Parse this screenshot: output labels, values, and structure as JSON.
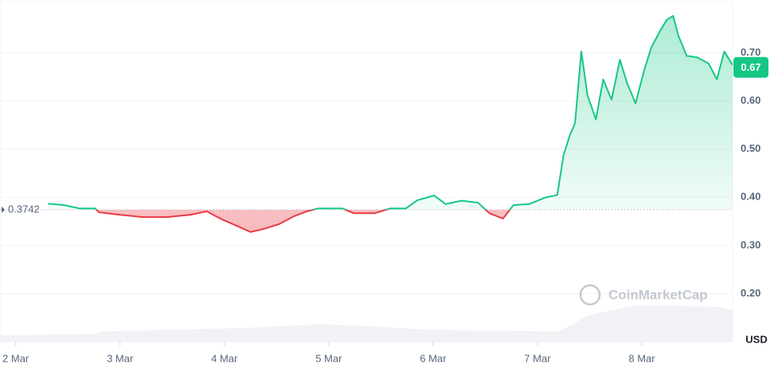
{
  "chart_data": {
    "type": "baseline-line",
    "x": [
      2.31,
      2.46,
      2.61,
      2.76,
      2.8,
      2.99,
      3.22,
      3.45,
      3.68,
      3.83,
      3.98,
      4.14,
      4.25,
      4.37,
      4.52,
      4.67,
      4.79,
      4.9,
      5.02,
      5.13,
      5.24,
      5.44,
      5.59,
      5.74,
      5.85,
      6.01,
      6.12,
      6.27,
      6.43,
      6.54,
      6.67,
      6.77,
      6.92,
      7.08,
      7.19,
      7.25,
      7.31,
      7.36,
      7.42,
      7.48,
      7.56,
      7.63,
      7.71,
      7.79,
      7.86,
      7.94,
      8.02,
      8.09,
      8.17,
      8.24,
      8.3,
      8.35,
      8.43,
      8.53,
      8.64,
      8.72,
      8.79,
      8.87
    ],
    "values": [
      0.387,
      0.384,
      0.377,
      0.377,
      0.369,
      0.364,
      0.359,
      0.359,
      0.364,
      0.371,
      0.354,
      0.339,
      0.328,
      0.334,
      0.344,
      0.361,
      0.371,
      0.377,
      0.377,
      0.377,
      0.367,
      0.367,
      0.377,
      0.377,
      0.394,
      0.404,
      0.386,
      0.393,
      0.389,
      0.367,
      0.356,
      0.384,
      0.386,
      0.4,
      0.405,
      0.488,
      0.529,
      0.554,
      0.703,
      0.612,
      0.562,
      0.645,
      0.603,
      0.686,
      0.637,
      0.595,
      0.662,
      0.711,
      0.744,
      0.769,
      0.777,
      0.736,
      0.694,
      0.691,
      0.678,
      0.645,
      0.703,
      0.675
    ],
    "baseline": 0.3742,
    "current_price": 0.67,
    "up_color": "#16c784",
    "down_color": "#ea3943",
    "xlim": [
      1.85,
      8.87
    ],
    "xticks": [
      {
        "value": 2,
        "label": "2 Mar"
      },
      {
        "value": 3,
        "label": "3 Mar"
      },
      {
        "value": 4,
        "label": "4 Mar"
      },
      {
        "value": 5,
        "label": "5 Mar"
      },
      {
        "value": 6,
        "label": "6 Mar"
      },
      {
        "value": 7,
        "label": "7 Mar"
      },
      {
        "value": 8,
        "label": "8 Mar"
      }
    ],
    "ylim": [
      0.1,
      0.81
    ],
    "yticks": [
      {
        "value": 0.2,
        "label": "0.20"
      },
      {
        "value": 0.3,
        "label": "0.30"
      },
      {
        "value": 0.4,
        "label": "0.40"
      },
      {
        "value": 0.5,
        "label": "0.50"
      },
      {
        "value": 0.6,
        "label": "0.60"
      },
      {
        "value": 0.7,
        "label": "0.70"
      }
    ],
    "grid": true,
    "currency": "USD",
    "watermark": "CoinMarketCap"
  }
}
